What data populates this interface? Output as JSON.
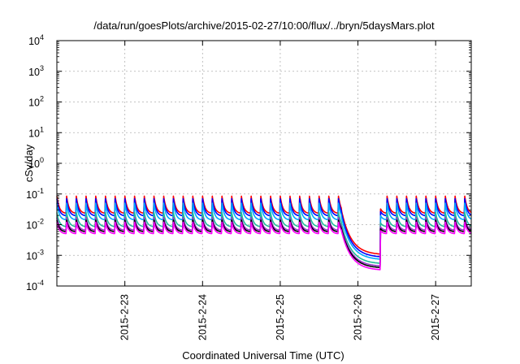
{
  "chart_data": {
    "type": "line",
    "title": "/data/run/goesPlots/archive/2015-02-27/10:00/flux/../bryn/5daysMars.plot",
    "xlabel": "Coordinated Universal Time (UTC)",
    "ylabel": "cSv/day",
    "yscale": "log",
    "ylim": [
      0.0001,
      10000
    ],
    "y_ticks": [
      {
        "base": "10",
        "exp": "-4"
      },
      {
        "base": "10",
        "exp": "-3"
      },
      {
        "base": "10",
        "exp": "-2"
      },
      {
        "base": "10",
        "exp": "-1"
      },
      {
        "base": "10",
        "exp": "0"
      },
      {
        "base": "10",
        "exp": "1"
      },
      {
        "base": "10",
        "exp": "2"
      },
      {
        "base": "10",
        "exp": "3"
      },
      {
        "base": "10",
        "exp": "4"
      }
    ],
    "xlim": [
      "2015-02-22T03:00",
      "2015-02-27T11:00"
    ],
    "x_ticks": [
      "2015-2-23",
      "2015-2-24",
      "2015-2-25",
      "2015-2-26",
      "2015-2-27"
    ],
    "grid": true,
    "cycle_hours": 3,
    "event_start": "2015-02-25T19:00",
    "event_recover": "2015-02-26T07:00",
    "series": [
      {
        "color": "#ff0000",
        "peak": 0.085,
        "trough": 0.023,
        "event_low": 0.0011
      },
      {
        "color": "#0000ff",
        "peak": 0.07,
        "trough": 0.019,
        "event_low": 0.0009
      },
      {
        "color": "#00aaff",
        "peak": 0.05,
        "trough": 0.014,
        "event_low": 0.00075
      },
      {
        "color": "#22bb99",
        "peak": 0.025,
        "trough": 0.0085,
        "event_low": 0.00055
      },
      {
        "color": "#9933cc",
        "peak": 0.017,
        "trough": 0.0065,
        "event_low": 0.00045
      },
      {
        "color": "#000000",
        "peak": 0.014,
        "trough": 0.0058,
        "event_low": 0.0004
      },
      {
        "color": "#ff00ff",
        "peak": 0.012,
        "trough": 0.005,
        "event_low": 0.00034
      }
    ]
  }
}
